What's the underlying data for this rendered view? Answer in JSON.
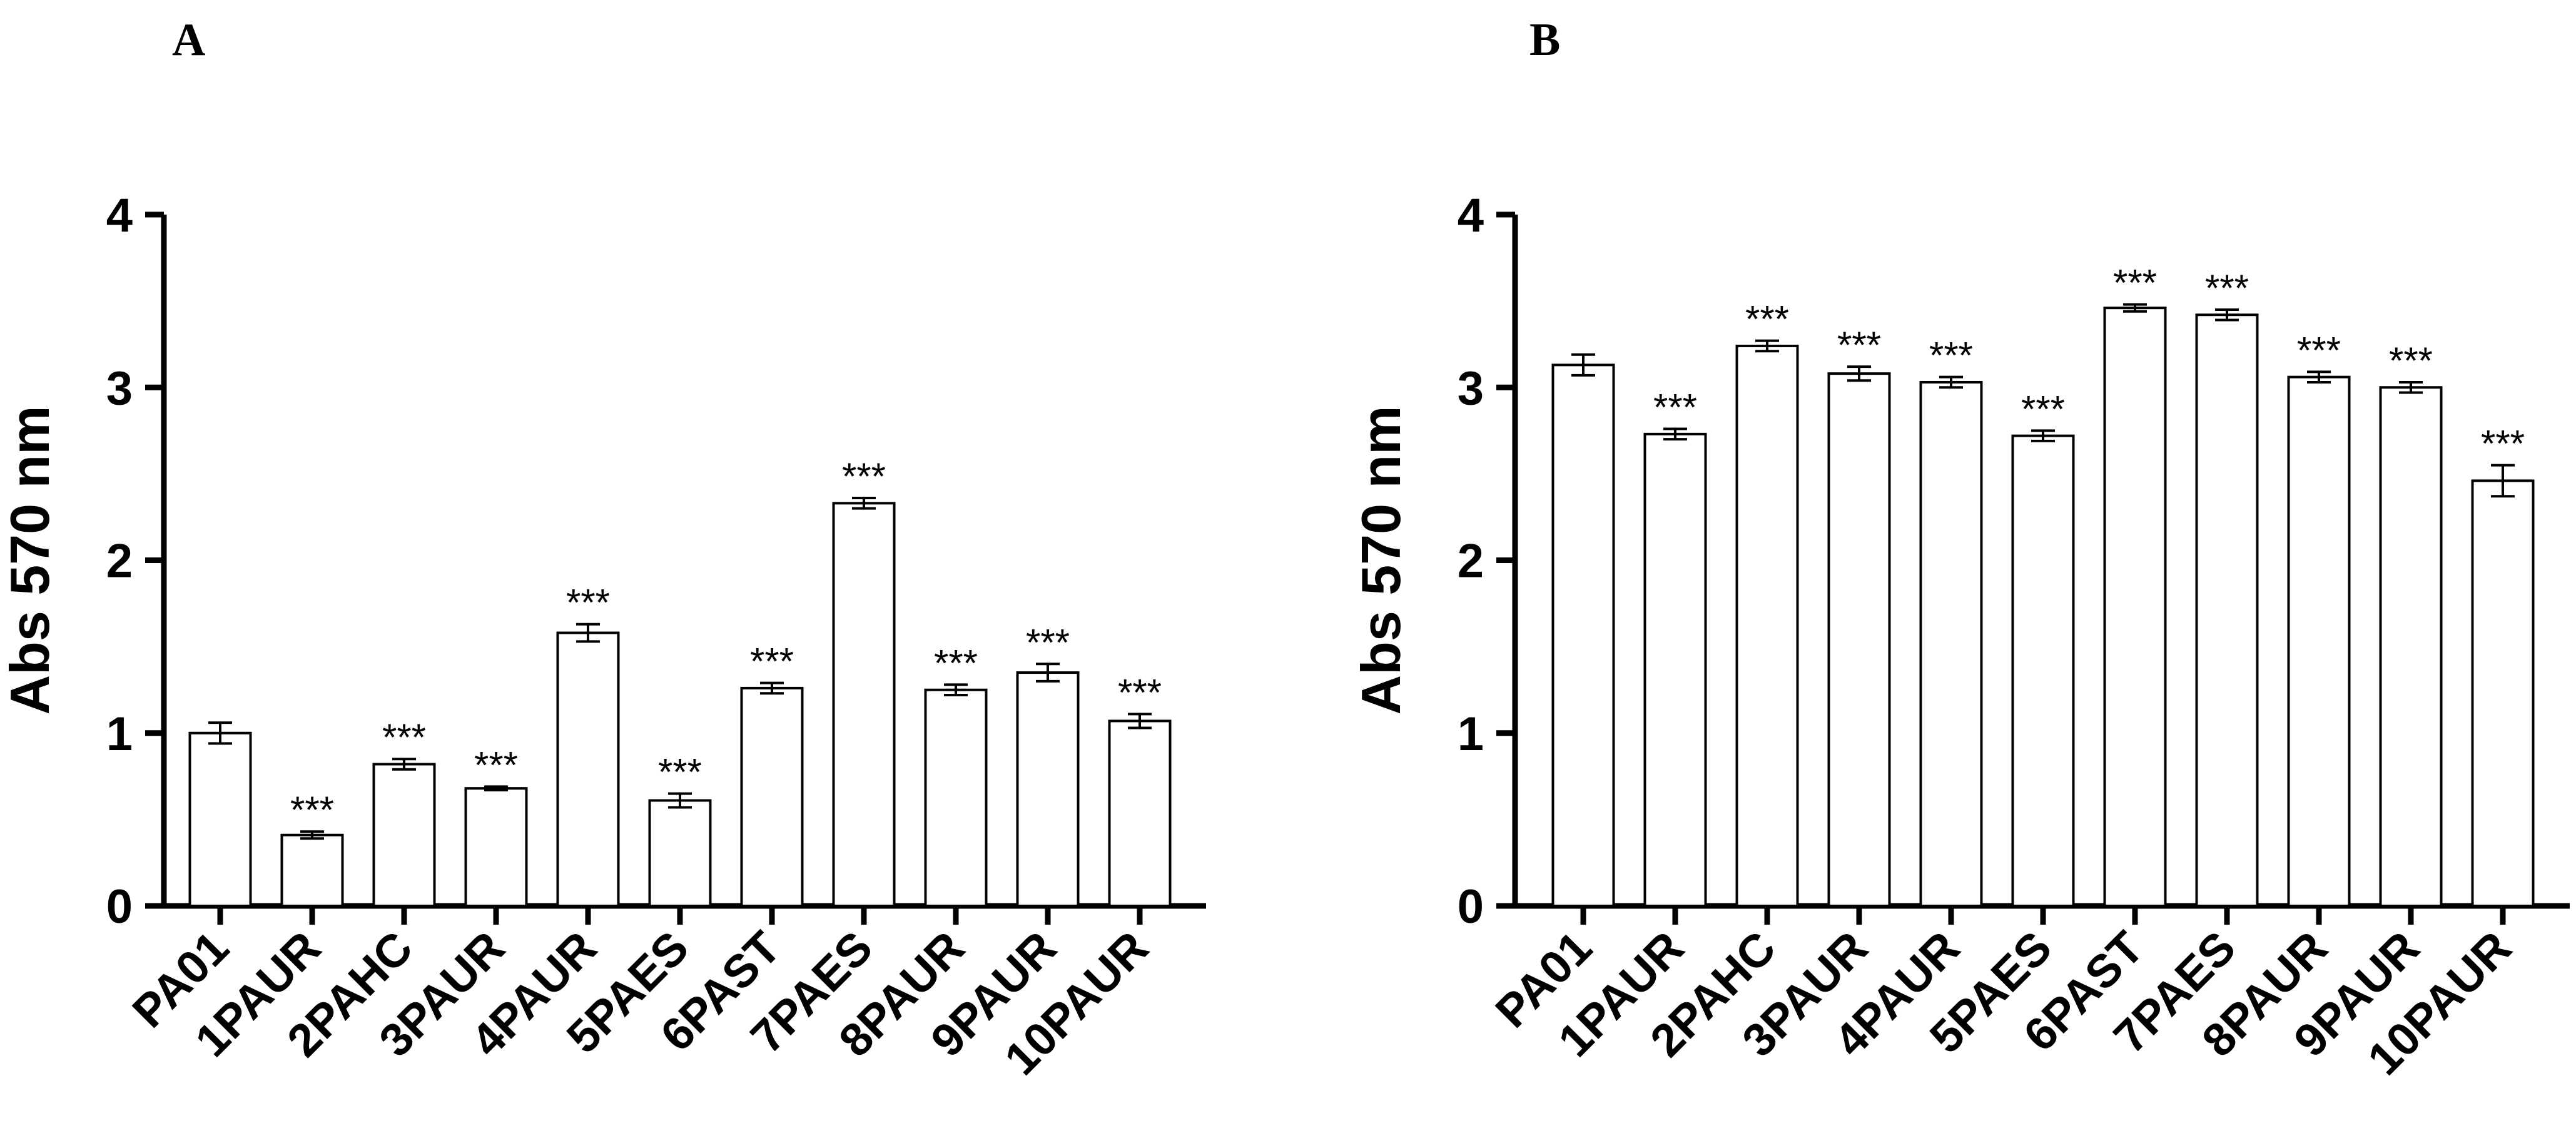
{
  "chart_data": [
    {
      "type": "bar",
      "panel_label": "A",
      "ylabel": "Abs 570 nm",
      "xlabel": "",
      "ylim": [
        0,
        4
      ],
      "yticks": [
        "0",
        "1",
        "2",
        "3",
        "4"
      ],
      "categories": [
        "PA01",
        "1PAUR",
        "2PAHC",
        "3PAUR",
        "4PAUR",
        "5PAES",
        "6PAST",
        "7PAES",
        "8PAUR",
        "9PAUR",
        "10PAUR"
      ],
      "values": [
        1.0,
        0.41,
        0.82,
        0.68,
        1.58,
        0.61,
        1.26,
        2.33,
        1.25,
        1.35,
        1.07
      ],
      "errors": [
        0.06,
        0.02,
        0.03,
        0.01,
        0.05,
        0.04,
        0.03,
        0.03,
        0.03,
        0.05,
        0.04
      ],
      "annotations": [
        "",
        "***",
        "***",
        "***",
        "***",
        "***",
        "***",
        "***",
        "***",
        "***",
        "***"
      ]
    },
    {
      "type": "bar",
      "panel_label": "B",
      "ylabel": "Abs 570 nm",
      "xlabel": "",
      "ylim": [
        0,
        4
      ],
      "yticks": [
        "0",
        "1",
        "2",
        "3",
        "4"
      ],
      "categories": [
        "PA01",
        "1PAUR",
        "2PAHC",
        "3PAUR",
        "4PAUR",
        "5PAES",
        "6PAST",
        "7PAES",
        "8PAUR",
        "9PAUR",
        "10PAUR"
      ],
      "values": [
        3.13,
        2.73,
        3.24,
        3.08,
        3.03,
        2.72,
        3.46,
        3.42,
        3.06,
        3.0,
        2.46
      ],
      "errors": [
        0.06,
        0.03,
        0.03,
        0.04,
        0.03,
        0.03,
        0.02,
        0.03,
        0.03,
        0.03,
        0.09
      ],
      "annotations": [
        "",
        "***",
        "***",
        "***",
        "***",
        "***",
        "***",
        "***",
        "***",
        "***",
        "***"
      ]
    }
  ]
}
